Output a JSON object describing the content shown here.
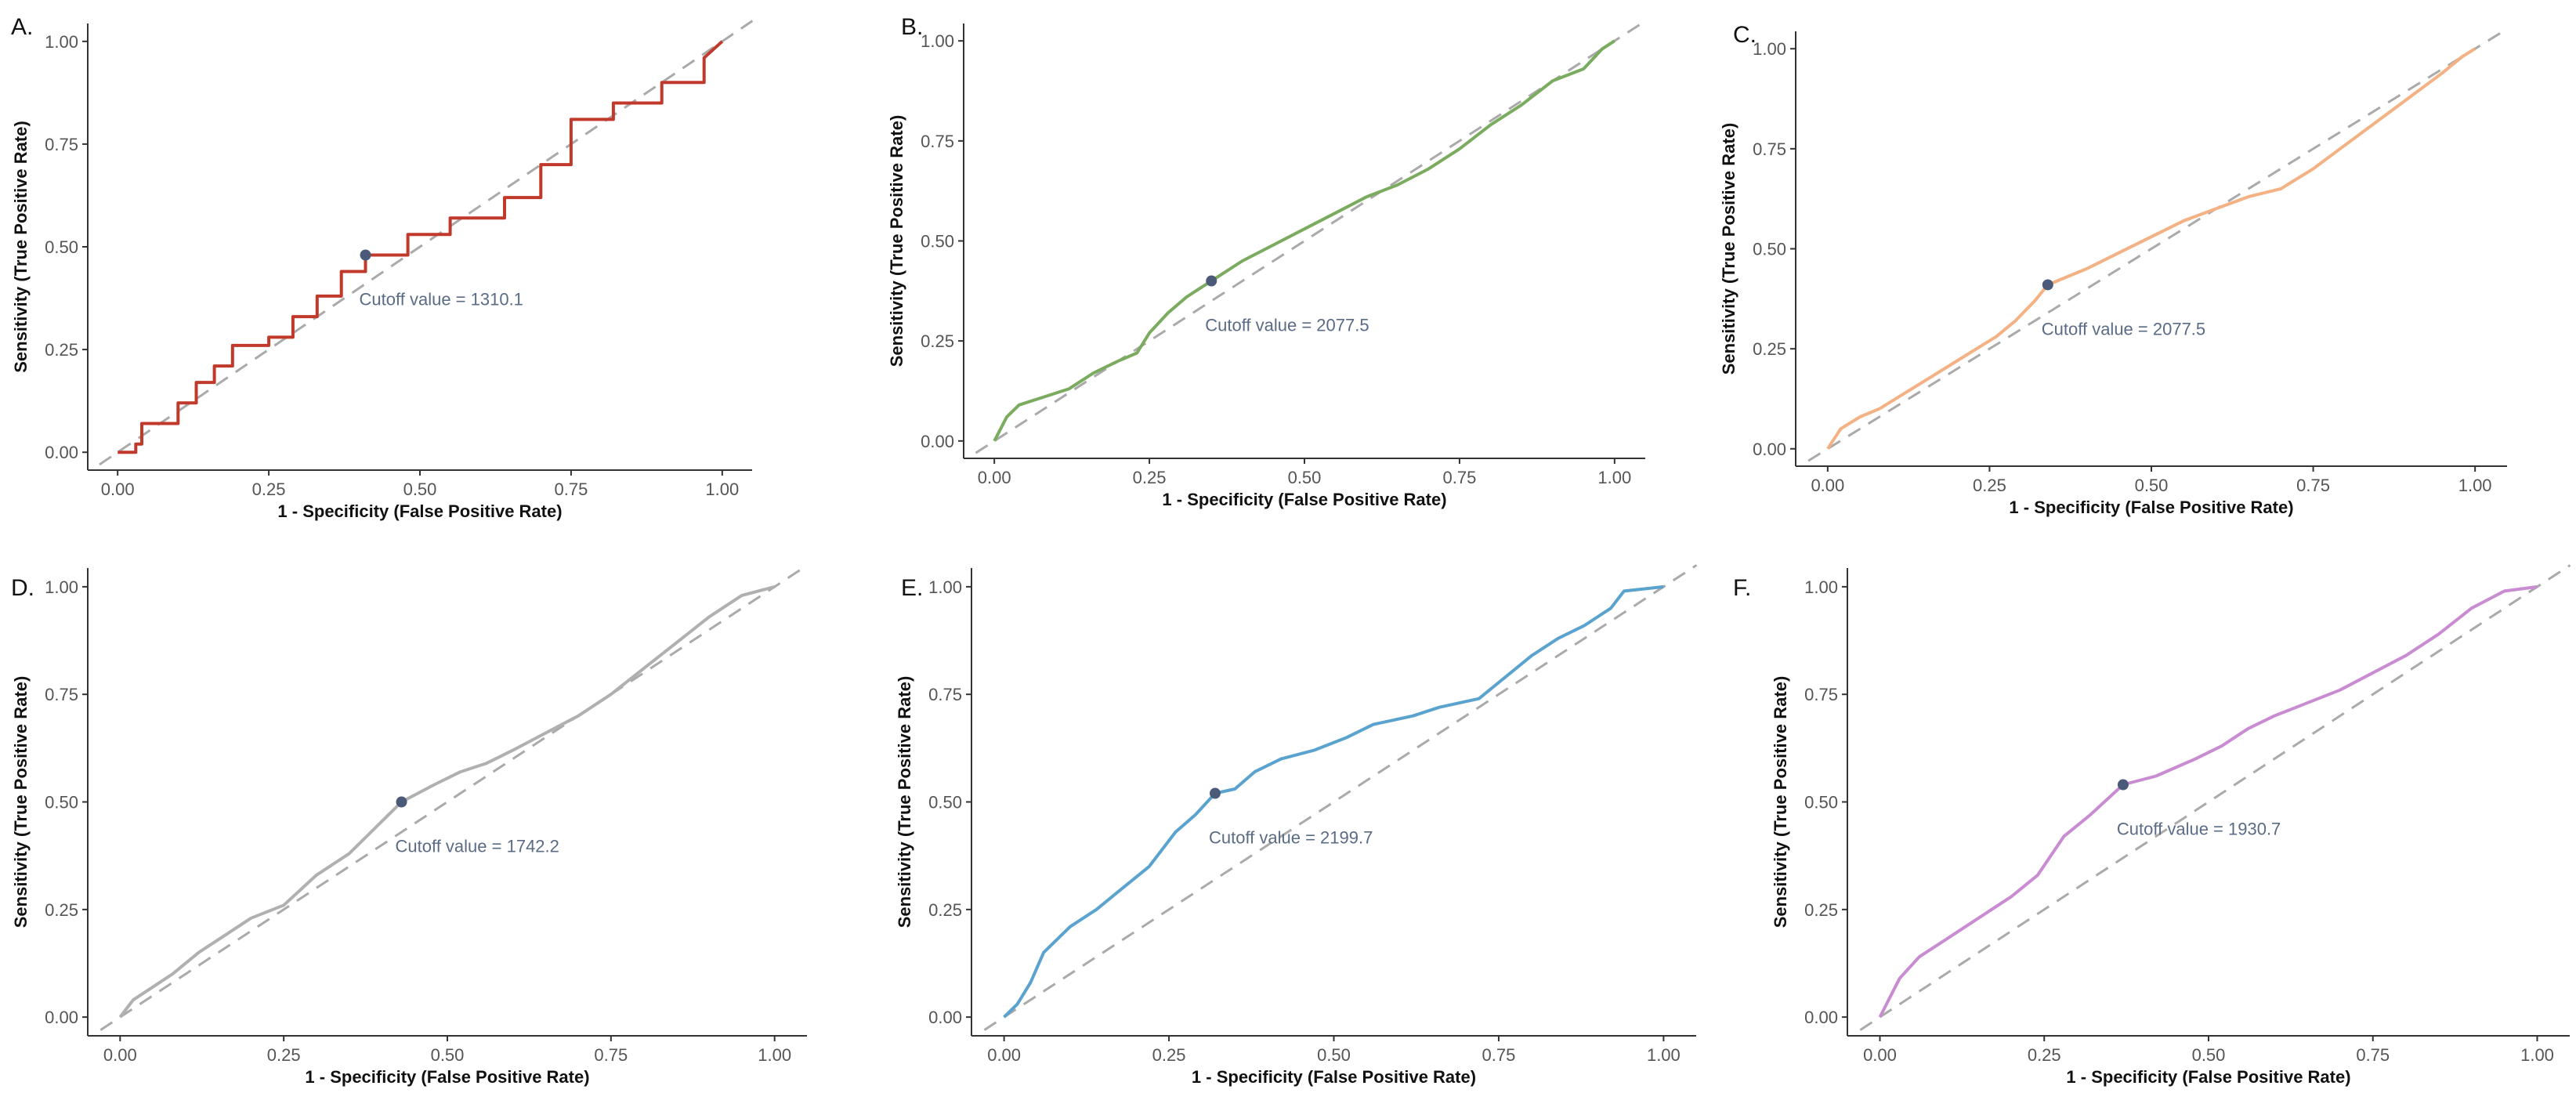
{
  "chart_data": [
    {
      "panel": "A.",
      "type": "line",
      "color": "#c0392b",
      "xlabel": "1 - Specificity (False Positive Rate)",
      "ylabel": "Sensitivity (True Positive Rate)",
      "xlim": [
        0,
        1
      ],
      "ylim": [
        0,
        1
      ],
      "xticks": [
        "0.00",
        "0.25",
        "0.50",
        "0.75",
        "1.00"
      ],
      "yticks": [
        "0.00",
        "0.25",
        "0.50",
        "0.75",
        "1.00"
      ],
      "reference_line": "diagonal dashed",
      "cutoff_point": {
        "x": 0.41,
        "y": 0.48
      },
      "cutoff_text": "Cutoff value = 1310.1",
      "x": [
        0,
        0.03,
        0.03,
        0.04,
        0.04,
        0.1,
        0.1,
        0.13,
        0.13,
        0.16,
        0.16,
        0.19,
        0.19,
        0.25,
        0.25,
        0.29,
        0.29,
        0.33,
        0.33,
        0.37,
        0.37,
        0.41,
        0.41,
        0.48,
        0.48,
        0.55,
        0.55,
        0.64,
        0.64,
        0.7,
        0.7,
        0.75,
        0.75,
        0.82,
        0.82,
        0.9,
        0.9,
        0.97,
        0.97,
        1
      ],
      "y": [
        0,
        0,
        0.02,
        0.02,
        0.07,
        0.07,
        0.12,
        0.12,
        0.17,
        0.17,
        0.21,
        0.21,
        0.26,
        0.26,
        0.28,
        0.28,
        0.33,
        0.33,
        0.38,
        0.38,
        0.44,
        0.44,
        0.48,
        0.48,
        0.53,
        0.53,
        0.57,
        0.57,
        0.62,
        0.62,
        0.7,
        0.7,
        0.81,
        0.81,
        0.85,
        0.85,
        0.9,
        0.9,
        0.96,
        1
      ]
    },
    {
      "panel": "B.",
      "type": "line",
      "color": "#7aab5e",
      "xlabel": "1 - Specificity (False Positive Rate)",
      "ylabel": "Sensitivity (True Positive Rate)",
      "xlim": [
        0,
        1
      ],
      "ylim": [
        0,
        1
      ],
      "xticks": [
        "0.00",
        "0.25",
        "0.50",
        "0.75",
        "1.00"
      ],
      "yticks": [
        "0.00",
        "0.25",
        "0.50",
        "0.75",
        "1.00"
      ],
      "reference_line": "diagonal dashed",
      "cutoff_point": {
        "x": 0.35,
        "y": 0.4
      },
      "cutoff_text": "Cutoff value = 2077.5",
      "x": [
        0,
        0.02,
        0.04,
        0.08,
        0.12,
        0.16,
        0.2,
        0.23,
        0.25,
        0.28,
        0.31,
        0.35,
        0.4,
        0.45,
        0.5,
        0.55,
        0.6,
        0.65,
        0.7,
        0.75,
        0.8,
        0.85,
        0.9,
        0.95,
        0.98,
        1
      ],
      "y": [
        0,
        0.06,
        0.09,
        0.11,
        0.13,
        0.17,
        0.2,
        0.22,
        0.27,
        0.32,
        0.36,
        0.4,
        0.45,
        0.49,
        0.53,
        0.57,
        0.61,
        0.64,
        0.68,
        0.73,
        0.79,
        0.84,
        0.9,
        0.93,
        0.98,
        1
      ]
    },
    {
      "panel": "C.",
      "type": "line",
      "color": "#f4b183",
      "xlabel": "1 - Specificity (False Positive Rate)",
      "ylabel": "Sensitivity (True Positive Rate)",
      "xlim": [
        0,
        1
      ],
      "ylim": [
        0,
        1
      ],
      "xticks": [
        "0.00",
        "0.25",
        "0.50",
        "0.75",
        "1.00"
      ],
      "yticks": [
        "0.00",
        "0.25",
        "0.50",
        "0.75",
        "1.00"
      ],
      "reference_line": "diagonal dashed",
      "cutoff_point": {
        "x": 0.34,
        "y": 0.41
      },
      "cutoff_text": "Cutoff value = 2077.5",
      "x": [
        0,
        0.02,
        0.05,
        0.08,
        0.12,
        0.16,
        0.2,
        0.23,
        0.26,
        0.29,
        0.32,
        0.34,
        0.4,
        0.45,
        0.5,
        0.55,
        0.6,
        0.65,
        0.7,
        0.75,
        0.8,
        0.85,
        0.9,
        0.95,
        0.98,
        1
      ],
      "y": [
        0,
        0.05,
        0.08,
        0.1,
        0.14,
        0.18,
        0.22,
        0.25,
        0.28,
        0.32,
        0.37,
        0.41,
        0.45,
        0.49,
        0.53,
        0.57,
        0.6,
        0.63,
        0.65,
        0.7,
        0.76,
        0.82,
        0.88,
        0.94,
        0.98,
        1
      ]
    },
    {
      "panel": "D.",
      "type": "line",
      "color": "#b0b0b0",
      "xlabel": "1 - Specificity (False Positive Rate)",
      "ylabel": "Sensitivity (True Positive Rate)",
      "xlim": [
        0,
        1
      ],
      "ylim": [
        0,
        1
      ],
      "xticks": [
        "0.00",
        "0.25",
        "0.50",
        "0.75",
        "1.00"
      ],
      "yticks": [
        "0.00",
        "0.25",
        "0.50",
        "0.75",
        "1.00"
      ],
      "reference_line": "diagonal dashed",
      "cutoff_point": {
        "x": 0.43,
        "y": 0.5
      },
      "cutoff_text": "Cutoff value = 1742.2",
      "x": [
        0,
        0.02,
        0.05,
        0.08,
        0.12,
        0.16,
        0.2,
        0.25,
        0.3,
        0.35,
        0.39,
        0.43,
        0.48,
        0.52,
        0.56,
        0.6,
        0.65,
        0.7,
        0.75,
        0.8,
        0.85,
        0.9,
        0.95,
        1
      ],
      "y": [
        0,
        0.04,
        0.07,
        0.1,
        0.15,
        0.19,
        0.23,
        0.26,
        0.33,
        0.38,
        0.44,
        0.5,
        0.54,
        0.57,
        0.59,
        0.62,
        0.66,
        0.7,
        0.75,
        0.81,
        0.87,
        0.93,
        0.98,
        1
      ]
    },
    {
      "panel": "E.",
      "type": "line",
      "color": "#5ba3cf",
      "xlabel": "1 - Specificity (False Positive Rate)",
      "ylabel": "Sensitivity (True Positive Rate)",
      "xlim": [
        0,
        1
      ],
      "ylim": [
        0,
        1
      ],
      "xticks": [
        "0.00",
        "0.25",
        "0.50",
        "0.75",
        "1.00"
      ],
      "yticks": [
        "0.00",
        "0.25",
        "0.50",
        "0.75",
        "1.00"
      ],
      "reference_line": "diagonal dashed",
      "cutoff_point": {
        "x": 0.32,
        "y": 0.52
      },
      "cutoff_text": "Cutoff value = 2199.7",
      "x": [
        0,
        0.02,
        0.04,
        0.06,
        0.1,
        0.14,
        0.18,
        0.22,
        0.26,
        0.29,
        0.32,
        0.35,
        0.38,
        0.42,
        0.47,
        0.52,
        0.56,
        0.62,
        0.66,
        0.72,
        0.76,
        0.8,
        0.84,
        0.88,
        0.92,
        0.94,
        1
      ],
      "y": [
        0,
        0.03,
        0.08,
        0.15,
        0.21,
        0.25,
        0.3,
        0.35,
        0.43,
        0.47,
        0.52,
        0.53,
        0.57,
        0.6,
        0.62,
        0.65,
        0.68,
        0.7,
        0.72,
        0.74,
        0.79,
        0.84,
        0.88,
        0.91,
        0.95,
        0.99,
        1
      ]
    },
    {
      "panel": "F.",
      "type": "line",
      "color": "#c98bd1",
      "xlabel": "1 - Specificity (False Positive Rate)",
      "ylabel": "Sensitivity (True Positive Rate)",
      "xlim": [
        0,
        1
      ],
      "ylim": [
        0,
        1
      ],
      "xticks": [
        "0.00",
        "0.25",
        "0.50",
        "0.75",
        "1.00"
      ],
      "yticks": [
        "0.00",
        "0.25",
        "0.50",
        "0.75",
        "1.00"
      ],
      "reference_line": "diagonal dashed",
      "cutoff_point": {
        "x": 0.37,
        "y": 0.54
      },
      "cutoff_text": "Cutoff value = 1930.7",
      "x": [
        0,
        0.01,
        0.03,
        0.06,
        0.1,
        0.15,
        0.2,
        0.24,
        0.28,
        0.32,
        0.37,
        0.42,
        0.48,
        0.52,
        0.56,
        0.6,
        0.65,
        0.7,
        0.75,
        0.8,
        0.85,
        0.9,
        0.95,
        1
      ],
      "y": [
        0,
        0.03,
        0.09,
        0.14,
        0.18,
        0.23,
        0.28,
        0.33,
        0.42,
        0.47,
        0.54,
        0.56,
        0.6,
        0.63,
        0.67,
        0.7,
        0.73,
        0.76,
        0.8,
        0.84,
        0.89,
        0.95,
        0.99,
        1
      ]
    }
  ]
}
